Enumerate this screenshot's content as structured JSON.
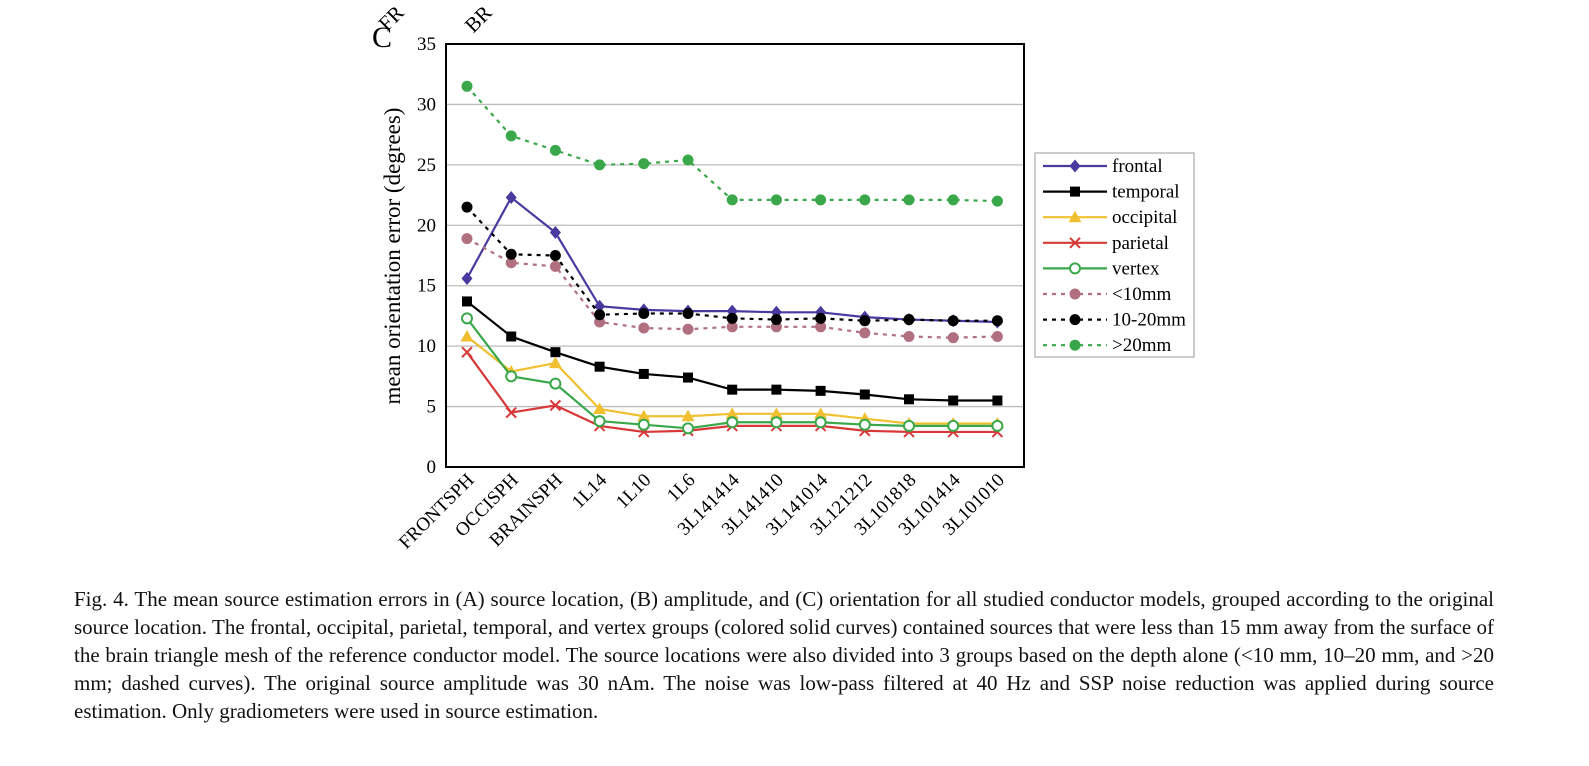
{
  "panel_label": "C",
  "caption": "Fig. 4. The mean source estimation errors in (A) source location, (B) amplitude, and (C) orientation for all studied conductor models, grouped according to the original source location. The frontal, occipital, parietal, temporal, and vertex groups (colored solid curves) contained sources that were less than 15 mm away from the surface of the brain triangle mesh of the reference conductor model. The source locations were also divided into 3 groups based on the depth alone (<10 mm, 10–20 mm, and >20 mm; dashed curves). The original source amplitude was 30 nAm. The noise was low-pass filtered at 40 Hz and SSP noise reduction was applied during source estimation. Only gradiometers were used in source estimation.",
  "top_cutoff_labels": [
    "FR",
    "BR"
  ],
  "chart_data": {
    "type": "line",
    "title": "",
    "xlabel": "",
    "ylabel": "mean orientation error (degrees)",
    "ylim": [
      0,
      35
    ],
    "yticks": [
      0,
      5,
      10,
      15,
      20,
      25,
      30,
      35
    ],
    "grid": true,
    "legend_position": "right",
    "categories": [
      "FRONTSPH",
      "OCCISPH",
      "BRAINSPH",
      "1L14",
      "1L10",
      "1L6",
      "3L141414",
      "3L141410",
      "3L141014",
      "3L121212",
      "3L101818",
      "3L101414",
      "3L101010"
    ],
    "series": [
      {
        "name": "frontal",
        "color": "#4a3aa0",
        "marker": "diamond",
        "dashed": false,
        "values": [
          15.6,
          22.3,
          19.4,
          13.3,
          13.0,
          12.9,
          12.9,
          12.8,
          12.8,
          12.4,
          12.2,
          12.1,
          12.0
        ]
      },
      {
        "name": "temporal",
        "color": "#000000",
        "marker": "square",
        "dashed": false,
        "values": [
          13.7,
          10.8,
          9.5,
          8.3,
          7.7,
          7.4,
          6.4,
          6.4,
          6.3,
          6.0,
          5.6,
          5.5,
          5.5
        ]
      },
      {
        "name": "occipital",
        "color": "#f0c030",
        "marker": "triangle",
        "dashed": false,
        "values": [
          10.8,
          7.9,
          8.6,
          4.8,
          4.2,
          4.2,
          4.4,
          4.4,
          4.4,
          4.0,
          3.6,
          3.6,
          3.6
        ]
      },
      {
        "name": "parietal",
        "color": "#d83838",
        "marker": "x",
        "dashed": false,
        "values": [
          9.5,
          4.5,
          5.1,
          3.4,
          2.9,
          3.0,
          3.4,
          3.4,
          3.4,
          3.0,
          2.9,
          2.9,
          2.9
        ]
      },
      {
        "name": "vertex",
        "color": "#3aa84a",
        "marker": "circle-open",
        "dashed": false,
        "values": [
          12.3,
          7.5,
          6.9,
          3.8,
          3.5,
          3.2,
          3.7,
          3.7,
          3.7,
          3.5,
          3.4,
          3.4,
          3.4
        ]
      },
      {
        "name": "<10mm",
        "color": "#b07080",
        "marker": "circle",
        "dashed": true,
        "values": [
          18.9,
          16.9,
          16.6,
          12.0,
          11.5,
          11.4,
          11.6,
          11.6,
          11.6,
          11.1,
          10.8,
          10.7,
          10.8
        ]
      },
      {
        "name": "10-20mm",
        "color": "#000000",
        "marker": "circle",
        "dashed": true,
        "values": [
          21.5,
          17.6,
          17.5,
          12.6,
          12.7,
          12.7,
          12.3,
          12.2,
          12.3,
          12.1,
          12.2,
          12.1,
          12.1
        ]
      },
      {
        "name": ">20mm",
        "color": "#3aa84a",
        "marker": "circle",
        "dashed": true,
        "values": [
          31.5,
          27.4,
          26.2,
          25.0,
          25.1,
          25.4,
          22.1,
          22.1,
          22.1,
          22.1,
          22.1,
          22.1,
          22.0
        ]
      }
    ]
  }
}
